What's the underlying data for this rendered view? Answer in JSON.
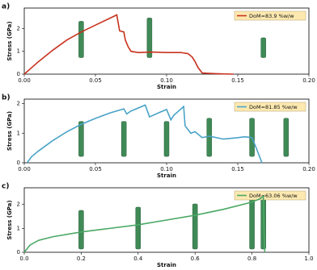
{
  "chart_data": [
    {
      "type": "line",
      "panel_label": "a)",
      "x_label": "Strain",
      "y_label": "Stress (GPa)",
      "legend_loc": "upper right",
      "x": [
        0,
        0.01,
        0.02,
        0.03,
        0.04,
        0.05,
        0.06,
        0.065,
        0.067,
        0.07,
        0.071,
        0.073,
        0.075,
        0.08,
        0.09,
        0.1,
        0.11,
        0.115,
        0.118,
        0.12,
        0.122,
        0.125,
        0.135,
        0.147
      ],
      "series": [
        {
          "name": "DoM=83.9 %w/w",
          "color": "#c8321e",
          "values": [
            0,
            0.55,
            1.05,
            1.5,
            1.85,
            2.15,
            2.45,
            2.6,
            1.9,
            1.85,
            1.5,
            1.2,
            1.0,
            0.95,
            0.97,
            0.95,
            0.95,
            0.9,
            0.75,
            0.55,
            0.3,
            0.05,
            0.02,
            0
          ]
        }
      ],
      "xlim": [
        0,
        0.2
      ],
      "ylim": [
        0,
        2.9
      ],
      "xticks": [
        {
          "value": 0,
          "label": "0.00"
        },
        0.05,
        {
          "value": 0.1,
          "label": "0.10"
        },
        0.15,
        {
          "value": 0.2,
          "label": "0.20"
        }
      ],
      "yticks": [
        0,
        1,
        2
      ]
    },
    {
      "type": "line",
      "panel_label": "b)",
      "x_label": "Strain",
      "y_label": "Stress (GPa)",
      "legend_loc": "upper right",
      "x": [
        0.002,
        0.005,
        0.01,
        0.02,
        0.03,
        0.04,
        0.05,
        0.06,
        0.07,
        0.072,
        0.075,
        0.085,
        0.088,
        0.095,
        0.1,
        0.103,
        0.105,
        0.112,
        0.113,
        0.117,
        0.12,
        0.125,
        0.13,
        0.14,
        0.15,
        0.155,
        0.16,
        0.163,
        0.167
      ],
      "series": [
        {
          "name": "DoM=81.85 %w/w",
          "color": "#4aa3c8",
          "values": [
            0,
            0.2,
            0.4,
            0.75,
            1.05,
            1.3,
            1.5,
            1.68,
            1.82,
            1.65,
            1.75,
            1.95,
            1.55,
            1.7,
            1.8,
            1.45,
            1.6,
            1.9,
            1.25,
            1.0,
            1.05,
            0.85,
            0.9,
            0.8,
            0.85,
            0.88,
            0.85,
            0.5,
            0
          ]
        }
      ],
      "xlim": [
        0,
        0.2
      ],
      "ylim": [
        0,
        2.15
      ],
      "xticks": [
        {
          "value": 0,
          "label": "0.00"
        },
        0.05,
        {
          "value": 0.1,
          "label": "0.10"
        },
        0.15,
        {
          "value": 0.2,
          "label": "0.20"
        }
      ],
      "yticks": [
        0,
        1,
        2
      ]
    },
    {
      "type": "line",
      "panel_label": "c)",
      "x_label": "Strain",
      "y_label": "Stress (GPa)",
      "legend_loc": "upper right",
      "x": [
        0,
        0.02,
        0.05,
        0.1,
        0.2,
        0.3,
        0.4,
        0.5,
        0.6,
        0.7,
        0.8,
        0.83,
        0.84,
        0.842,
        0.845
      ],
      "series": [
        {
          "name": "DoM=63.06 %w/w",
          "color": "#4aa864",
          "values": [
            0,
            0.3,
            0.5,
            0.65,
            0.85,
            1.0,
            1.15,
            1.35,
            1.55,
            1.8,
            2.1,
            2.25,
            2.35,
            1.0,
            0
          ]
        }
      ],
      "xlim": [
        0,
        1.0
      ],
      "ylim": [
        0,
        2.7
      ],
      "xticks": [
        {
          "value": 0,
          "label": "0.0"
        },
        0.2,
        0.4,
        0.6,
        0.8,
        {
          "value": 1.0,
          "label": "1.0"
        }
      ],
      "yticks": [
        0,
        1,
        2
      ]
    }
  ]
}
